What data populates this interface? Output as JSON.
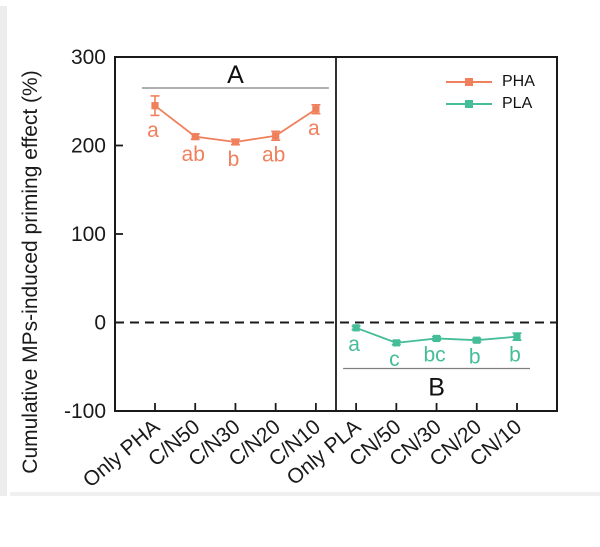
{
  "chart_data": {
    "type": "line",
    "title": "",
    "xlabel": "",
    "ylabel": "Cumulative MPs-induced priming effect (%)",
    "ylim": [
      -100,
      300
    ],
    "yticks": [
      300,
      200,
      100,
      0,
      -100
    ],
    "grid": false,
    "legend_position": "top-right-inside",
    "reference_line": {
      "y": 0,
      "style": "dashed"
    },
    "categories": [
      "Only PHA",
      "C/N50",
      "C/N30",
      "C/N20",
      "C/N10",
      "Only PLA",
      "CN/50",
      "CN/30",
      "CN/20",
      "CN/10"
    ],
    "panel_divider_between": [
      "C/N10",
      "Only PLA"
    ],
    "panels": [
      {
        "label": "A",
        "series": "PHA",
        "sig_line_y": 265,
        "label_side": "above"
      },
      {
        "label": "B",
        "series": "PLA",
        "sig_line_y": -52,
        "label_side": "below"
      }
    ],
    "series": [
      {
        "name": "PHA",
        "color": "#F0805C",
        "marker": "square",
        "category_indices": [
          0,
          1,
          2,
          3,
          4
        ],
        "values": [
          245,
          210,
          204,
          211,
          241
        ],
        "errors": [
          11,
          3,
          3,
          5,
          5
        ],
        "sig_letters": [
          "a",
          "ab",
          "b",
          "ab",
          "a"
        ]
      },
      {
        "name": "PLA",
        "color": "#45BD98",
        "marker": "square",
        "category_indices": [
          5,
          6,
          7,
          8,
          9
        ],
        "values": [
          -6,
          -23,
          -18,
          -20,
          -16
        ],
        "errors": [
          2,
          2,
          2,
          2,
          4
        ],
        "sig_letters": [
          "a",
          "c",
          "bc",
          "b",
          "b"
        ]
      }
    ]
  }
}
